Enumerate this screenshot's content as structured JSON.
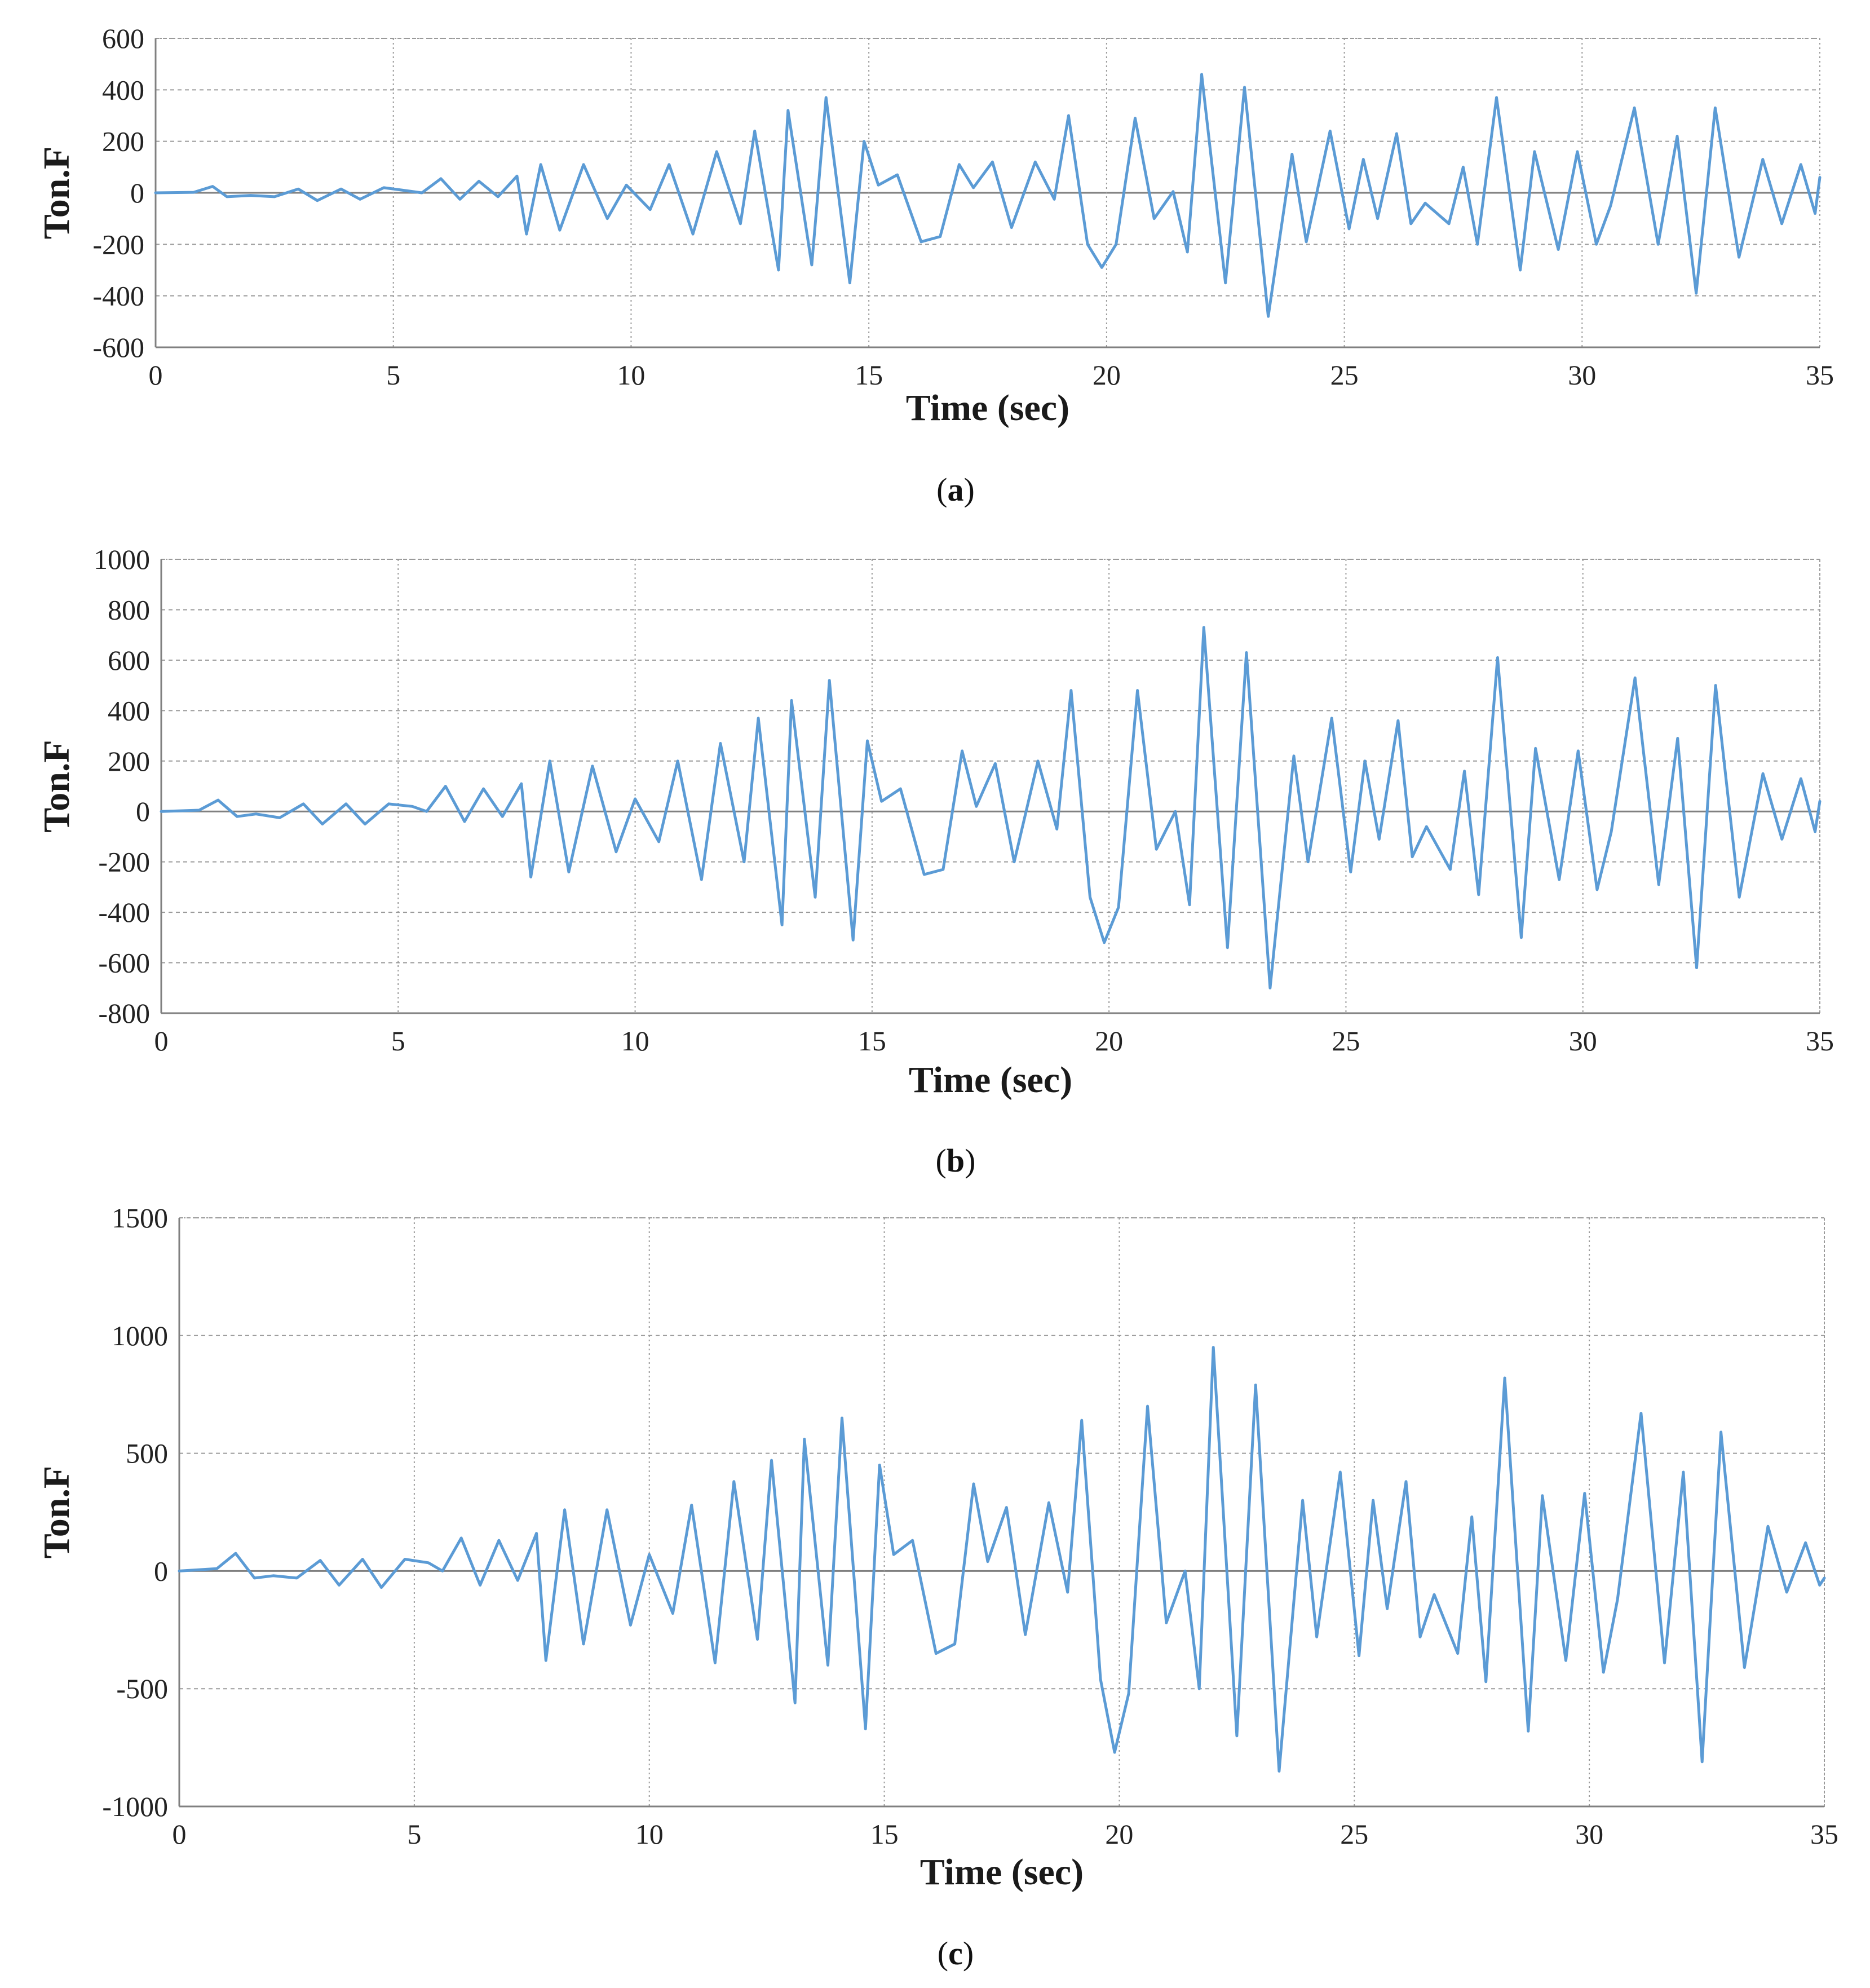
{
  "chart_data": [
    {
      "type": "line",
      "panel_label": "a",
      "ylabel": "Ton.F",
      "xlabel": "Time (sec)",
      "xlim": [
        0,
        35
      ],
      "ylim": [
        -600,
        600
      ],
      "x_ticks": [
        "0",
        "5",
        "10",
        "15",
        "20",
        "25",
        "30",
        "35"
      ],
      "y_ticks": [
        "600",
        "400",
        "200",
        "0",
        "-200",
        "-400",
        "-600"
      ],
      "grid": true,
      "series": [
        {
          "name": "Ton.F",
          "color": "#5b9bd5",
          "points": [
            [
              0,
              0
            ],
            [
              0.8,
              2
            ],
            [
              1.2,
              25
            ],
            [
              1.5,
              -15
            ],
            [
              2,
              -10
            ],
            [
              2.5,
              -15
            ],
            [
              3,
              15
            ],
            [
              3.4,
              -30
            ],
            [
              3.9,
              15
            ],
            [
              4.3,
              -25
            ],
            [
              4.8,
              20
            ],
            [
              5.2,
              10
            ],
            [
              5.6,
              0
            ],
            [
              6,
              55
            ],
            [
              6.4,
              -25
            ],
            [
              6.8,
              45
            ],
            [
              7.2,
              -15
            ],
            [
              7.6,
              65
            ],
            [
              7.8,
              -160
            ],
            [
              8.1,
              110
            ],
            [
              8.5,
              -145
            ],
            [
              9,
              110
            ],
            [
              9.5,
              -100
            ],
            [
              9.9,
              30
            ],
            [
              10.4,
              -65
            ],
            [
              10.8,
              110
            ],
            [
              11.3,
              -160
            ],
            [
              11.8,
              160
            ],
            [
              12.3,
              -120
            ],
            [
              12.6,
              240
            ],
            [
              13.1,
              -300
            ],
            [
              13.3,
              320
            ],
            [
              13.8,
              -280
            ],
            [
              14.1,
              370
            ],
            [
              14.6,
              -350
            ],
            [
              14.9,
              200
            ],
            [
              15.2,
              30
            ],
            [
              15.6,
              70
            ],
            [
              16.1,
              -190
            ],
            [
              16.5,
              -170
            ],
            [
              16.9,
              110
            ],
            [
              17.2,
              20
            ],
            [
              17.6,
              120
            ],
            [
              18,
              -135
            ],
            [
              18.5,
              120
            ],
            [
              18.9,
              -25
            ],
            [
              19.2,
              300
            ],
            [
              19.6,
              -200
            ],
            [
              19.9,
              -290
            ],
            [
              20.2,
              -200
            ],
            [
              20.6,
              290
            ],
            [
              21,
              -100
            ],
            [
              21.4,
              5
            ],
            [
              21.7,
              -230
            ],
            [
              22,
              460
            ],
            [
              22.5,
              -350
            ],
            [
              22.9,
              410
            ],
            [
              23.4,
              -480
            ],
            [
              23.9,
              150
            ],
            [
              24.2,
              -190
            ],
            [
              24.7,
              240
            ],
            [
              25.1,
              -140
            ],
            [
              25.4,
              130
            ],
            [
              25.7,
              -100
            ],
            [
              26.1,
              230
            ],
            [
              26.4,
              -120
            ],
            [
              26.7,
              -40
            ],
            [
              27.2,
              -120
            ],
            [
              27.5,
              100
            ],
            [
              27.8,
              -200
            ],
            [
              28.2,
              370
            ],
            [
              28.7,
              -300
            ],
            [
              29,
              160
            ],
            [
              29.5,
              -220
            ],
            [
              29.9,
              160
            ],
            [
              30.3,
              -200
            ],
            [
              30.6,
              -50
            ],
            [
              31.1,
              330
            ],
            [
              31.6,
              -200
            ],
            [
              32,
              220
            ],
            [
              32.4,
              -390
            ],
            [
              32.8,
              330
            ],
            [
              33.3,
              -250
            ],
            [
              33.8,
              130
            ],
            [
              34.2,
              -120
            ],
            [
              34.6,
              110
            ],
            [
              34.9,
              -80
            ],
            [
              35,
              60
            ]
          ]
        }
      ]
    },
    {
      "type": "line",
      "panel_label": "b",
      "ylabel": "Ton.F",
      "xlabel": "Time (sec)",
      "xlim": [
        0,
        35
      ],
      "ylim": [
        -800,
        1000
      ],
      "x_ticks": [
        "0",
        "5",
        "10",
        "15",
        "20",
        "25",
        "30",
        "35"
      ],
      "y_ticks": [
        "1000",
        "800",
        "600",
        "400",
        "200",
        "0",
        "-200",
        "-400",
        "-600",
        "-800"
      ],
      "grid": true,
      "series": [
        {
          "name": "Ton.F",
          "color": "#5b9bd5",
          "points": [
            [
              0,
              0
            ],
            [
              0.8,
              5
            ],
            [
              1.2,
              45
            ],
            [
              1.6,
              -20
            ],
            [
              2,
              -10
            ],
            [
              2.5,
              -25
            ],
            [
              3,
              30
            ],
            [
              3.4,
              -50
            ],
            [
              3.9,
              30
            ],
            [
              4.3,
              -50
            ],
            [
              4.8,
              30
            ],
            [
              5.3,
              20
            ],
            [
              5.6,
              0
            ],
            [
              6,
              100
            ],
            [
              6.4,
              -40
            ],
            [
              6.8,
              90
            ],
            [
              7.2,
              -20
            ],
            [
              7.6,
              110
            ],
            [
              7.8,
              -260
            ],
            [
              8.2,
              200
            ],
            [
              8.6,
              -240
            ],
            [
              9.1,
              180
            ],
            [
              9.6,
              -160
            ],
            [
              10,
              50
            ],
            [
              10.5,
              -120
            ],
            [
              10.9,
              200
            ],
            [
              11.4,
              -270
            ],
            [
              11.8,
              270
            ],
            [
              12.3,
              -200
            ],
            [
              12.6,
              370
            ],
            [
              13.1,
              -450
            ],
            [
              13.3,
              440
            ],
            [
              13.8,
              -340
            ],
            [
              14.1,
              520
            ],
            [
              14.6,
              -510
            ],
            [
              14.9,
              280
            ],
            [
              15.2,
              40
            ],
            [
              15.6,
              90
            ],
            [
              16.1,
              -250
            ],
            [
              16.5,
              -230
            ],
            [
              16.9,
              240
            ],
            [
              17.2,
              20
            ],
            [
              17.6,
              190
            ],
            [
              18,
              -200
            ],
            [
              18.5,
              200
            ],
            [
              18.9,
              -70
            ],
            [
              19.2,
              480
            ],
            [
              19.6,
              -340
            ],
            [
              19.9,
              -520
            ],
            [
              20.2,
              -380
            ],
            [
              20.6,
              480
            ],
            [
              21,
              -150
            ],
            [
              21.4,
              0
            ],
            [
              21.7,
              -370
            ],
            [
              22,
              730
            ],
            [
              22.5,
              -540
            ],
            [
              22.9,
              630
            ],
            [
              23.4,
              -700
            ],
            [
              23.9,
              220
            ],
            [
              24.2,
              -200
            ],
            [
              24.7,
              370
            ],
            [
              25.1,
              -240
            ],
            [
              25.4,
              200
            ],
            [
              25.7,
              -110
            ],
            [
              26.1,
              360
            ],
            [
              26.4,
              -180
            ],
            [
              26.7,
              -60
            ],
            [
              27.2,
              -230
            ],
            [
              27.5,
              160
            ],
            [
              27.8,
              -330
            ],
            [
              28.2,
              610
            ],
            [
              28.7,
              -500
            ],
            [
              29,
              250
            ],
            [
              29.5,
              -270
            ],
            [
              29.9,
              240
            ],
            [
              30.3,
              -310
            ],
            [
              30.6,
              -80
            ],
            [
              31.1,
              530
            ],
            [
              31.6,
              -290
            ],
            [
              32,
              290
            ],
            [
              32.4,
              -620
            ],
            [
              32.8,
              500
            ],
            [
              33.3,
              -340
            ],
            [
              33.8,
              150
            ],
            [
              34.2,
              -110
            ],
            [
              34.6,
              130
            ],
            [
              34.9,
              -80
            ],
            [
              35,
              40
            ]
          ]
        }
      ]
    },
    {
      "type": "line",
      "panel_label": "c",
      "ylabel": "Ton.F",
      "xlabel": "Time (sec)",
      "xlim": [
        0,
        35
      ],
      "ylim": [
        -1000,
        1500
      ],
      "x_ticks": [
        "0",
        "5",
        "10",
        "15",
        "20",
        "25",
        "30",
        "35"
      ],
      "y_ticks": [
        "1500",
        "1000",
        "500",
        "0",
        "-500",
        "-1000"
      ],
      "grid": true,
      "series": [
        {
          "name": "Ton.F",
          "color": "#5b9bd5",
          "points": [
            [
              0,
              0
            ],
            [
              0.8,
              10
            ],
            [
              1.2,
              75
            ],
            [
              1.6,
              -30
            ],
            [
              2,
              -20
            ],
            [
              2.5,
              -30
            ],
            [
              3,
              45
            ],
            [
              3.4,
              -60
            ],
            [
              3.9,
              50
            ],
            [
              4.3,
              -70
            ],
            [
              4.8,
              50
            ],
            [
              5.3,
              35
            ],
            [
              5.6,
              0
            ],
            [
              6,
              140
            ],
            [
              6.4,
              -60
            ],
            [
              6.8,
              130
            ],
            [
              7.2,
              -40
            ],
            [
              7.6,
              160
            ],
            [
              7.8,
              -380
            ],
            [
              8.2,
              260
            ],
            [
              8.6,
              -310
            ],
            [
              9.1,
              260
            ],
            [
              9.6,
              -230
            ],
            [
              10,
              70
            ],
            [
              10.5,
              -180
            ],
            [
              10.9,
              280
            ],
            [
              11.4,
              -390
            ],
            [
              11.8,
              380
            ],
            [
              12.3,
              -290
            ],
            [
              12.6,
              470
            ],
            [
              13.1,
              -560
            ],
            [
              13.3,
              560
            ],
            [
              13.8,
              -400
            ],
            [
              14.1,
              650
            ],
            [
              14.6,
              -670
            ],
            [
              14.9,
              450
            ],
            [
              15.2,
              70
            ],
            [
              15.6,
              130
            ],
            [
              16.1,
              -350
            ],
            [
              16.5,
              -310
            ],
            [
              16.9,
              370
            ],
            [
              17.2,
              40
            ],
            [
              17.6,
              270
            ],
            [
              18,
              -270
            ],
            [
              18.5,
              290
            ],
            [
              18.9,
              -90
            ],
            [
              19.2,
              640
            ],
            [
              19.6,
              -460
            ],
            [
              19.9,
              -770
            ],
            [
              20.2,
              -520
            ],
            [
              20.6,
              700
            ],
            [
              21,
              -220
            ],
            [
              21.4,
              0
            ],
            [
              21.7,
              -500
            ],
            [
              22,
              950
            ],
            [
              22.5,
              -700
            ],
            [
              22.9,
              790
            ],
            [
              23.4,
              -850
            ],
            [
              23.9,
              300
            ],
            [
              24.2,
              -280
            ],
            [
              24.7,
              420
            ],
            [
              25.1,
              -360
            ],
            [
              25.4,
              300
            ],
            [
              25.7,
              -160
            ],
            [
              26.1,
              380
            ],
            [
              26.4,
              -280
            ],
            [
              26.7,
              -100
            ],
            [
              27.2,
              -350
            ],
            [
              27.5,
              230
            ],
            [
              27.8,
              -470
            ],
            [
              28.2,
              820
            ],
            [
              28.7,
              -680
            ],
            [
              29,
              320
            ],
            [
              29.5,
              -380
            ],
            [
              29.9,
              330
            ],
            [
              30.3,
              -430
            ],
            [
              30.6,
              -120
            ],
            [
              31.1,
              670
            ],
            [
              31.6,
              -390
            ],
            [
              32,
              420
            ],
            [
              32.4,
              -810
            ],
            [
              32.8,
              590
            ],
            [
              33.3,
              -410
            ],
            [
              33.8,
              190
            ],
            [
              34.2,
              -90
            ],
            [
              34.6,
              120
            ],
            [
              34.9,
              -60
            ],
            [
              35,
              -30
            ]
          ]
        }
      ]
    }
  ],
  "captions": [
    "(a)",
    "(b)",
    "(c)"
  ]
}
